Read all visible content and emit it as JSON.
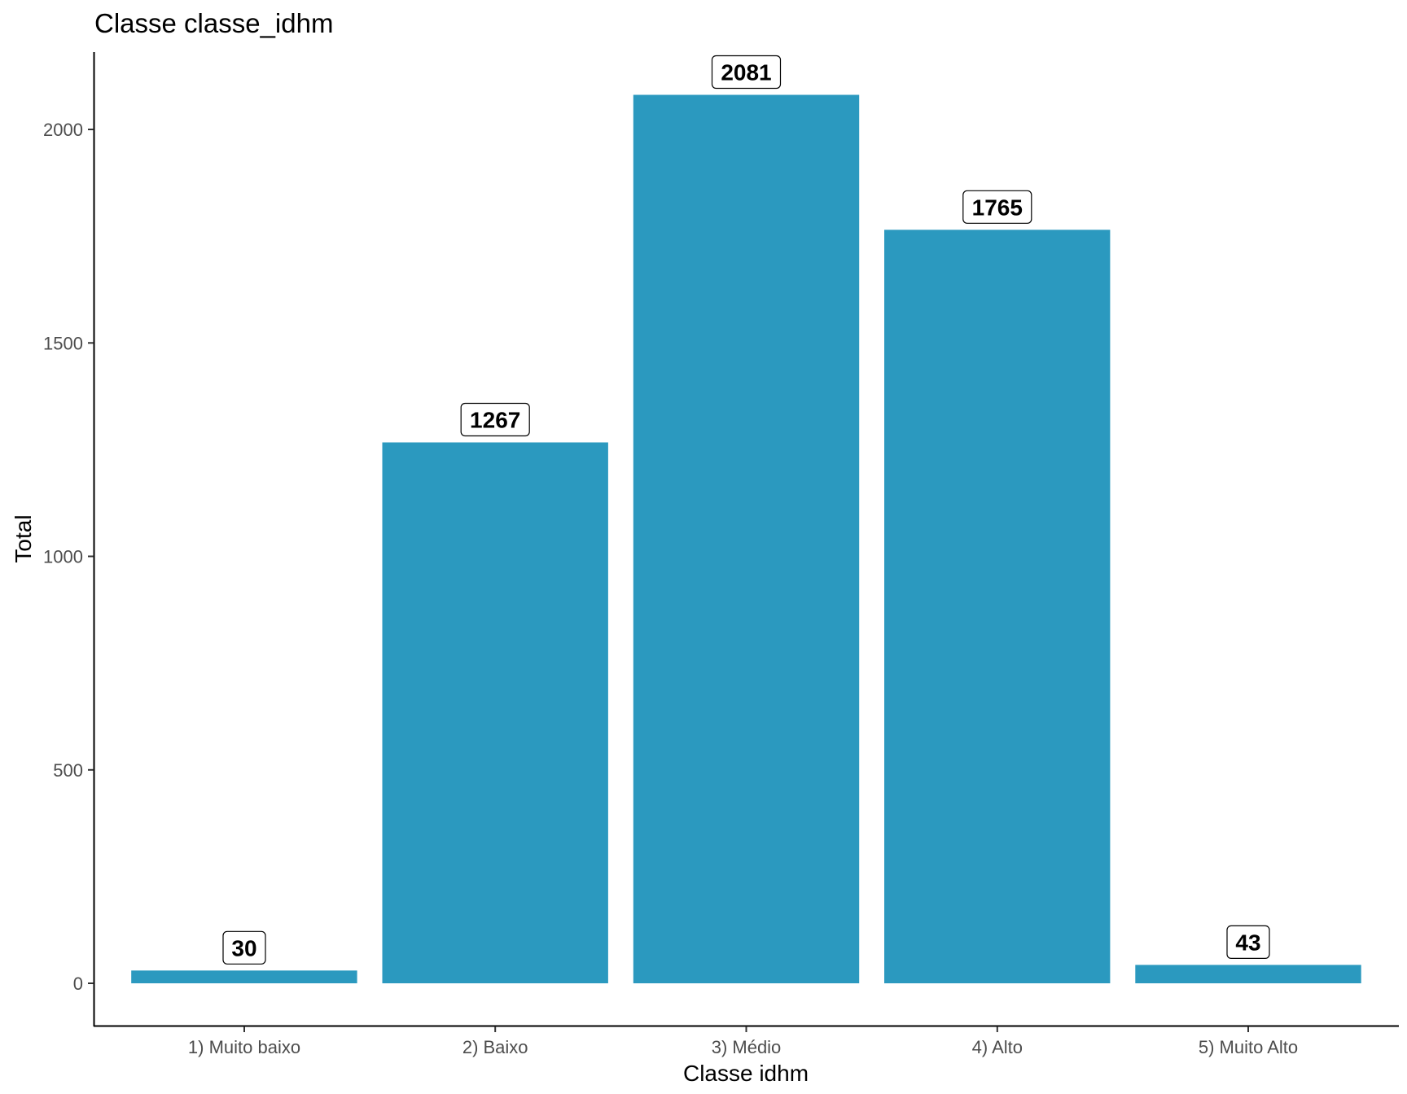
{
  "chart_data": {
    "type": "bar",
    "title": "Classe classe_idhm",
    "xlabel": "Classe idhm",
    "ylabel": "Total",
    "categories": [
      "1) Muito baixo",
      "2) Baixo",
      "3) Médio",
      "4) Alto",
      "5) Muito Alto"
    ],
    "values": [
      30,
      1267,
      2081,
      1765,
      43
    ],
    "data_labels": [
      "30",
      "1267",
      "2081",
      "1765",
      "43"
    ],
    "yticks": [
      0,
      500,
      1000,
      1500,
      2000
    ],
    "ylim": [
      -100,
      2180
    ],
    "grid": false,
    "bar_color": "#2b99bf"
  }
}
